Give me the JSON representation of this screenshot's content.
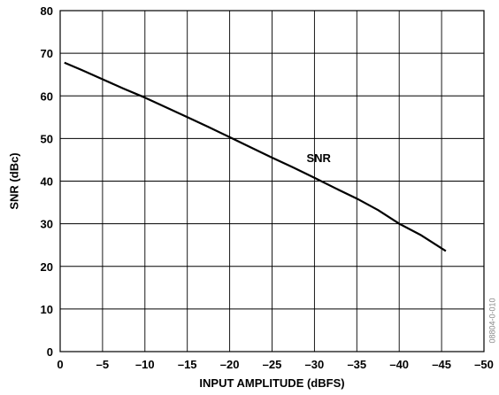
{
  "chart_data": {
    "type": "line",
    "title": "",
    "xlabel": "INPUT AMPLITUDE (dBFS)",
    "ylabel": "SNR (dBc)",
    "xlim": [
      0,
      -50
    ],
    "ylim": [
      0,
      80
    ],
    "x_ticks": [
      0,
      -5,
      -10,
      -15,
      -20,
      -25,
      -30,
      -35,
      -40,
      -45,
      -50
    ],
    "x_tick_labels": [
      "0",
      "–5",
      "–10",
      "–15",
      "–20",
      "–25",
      "–30",
      "–35",
      "–40",
      "–45",
      "–50"
    ],
    "y_ticks": [
      0,
      10,
      20,
      30,
      40,
      50,
      60,
      70,
      80
    ],
    "y_tick_labels": [
      "0",
      "10",
      "20",
      "30",
      "40",
      "50",
      "60",
      "70",
      "80"
    ],
    "grid": true,
    "legend": "none",
    "line_color": "#000000",
    "annotations": [
      {
        "text": "SNR",
        "x": -30.5,
        "y": 44.5
      }
    ],
    "figure_id": "08804-0-010",
    "series": [
      {
        "name": "SNR",
        "x": [
          -0.5,
          -2.5,
          -5,
          -7.5,
          -10,
          -12.5,
          -15,
          -17.5,
          -20,
          -22.5,
          -25,
          -27.5,
          -30,
          -32.5,
          -35,
          -37.5,
          -40,
          -42.5,
          -45.5
        ],
        "values": [
          67.8,
          66.1,
          63.9,
          61.7,
          59.6,
          57.3,
          55.0,
          52.7,
          50.3,
          47.9,
          45.5,
          43.2,
          40.8,
          38.3,
          35.9,
          33.2,
          30.0,
          27.4,
          23.6
        ]
      }
    ]
  }
}
